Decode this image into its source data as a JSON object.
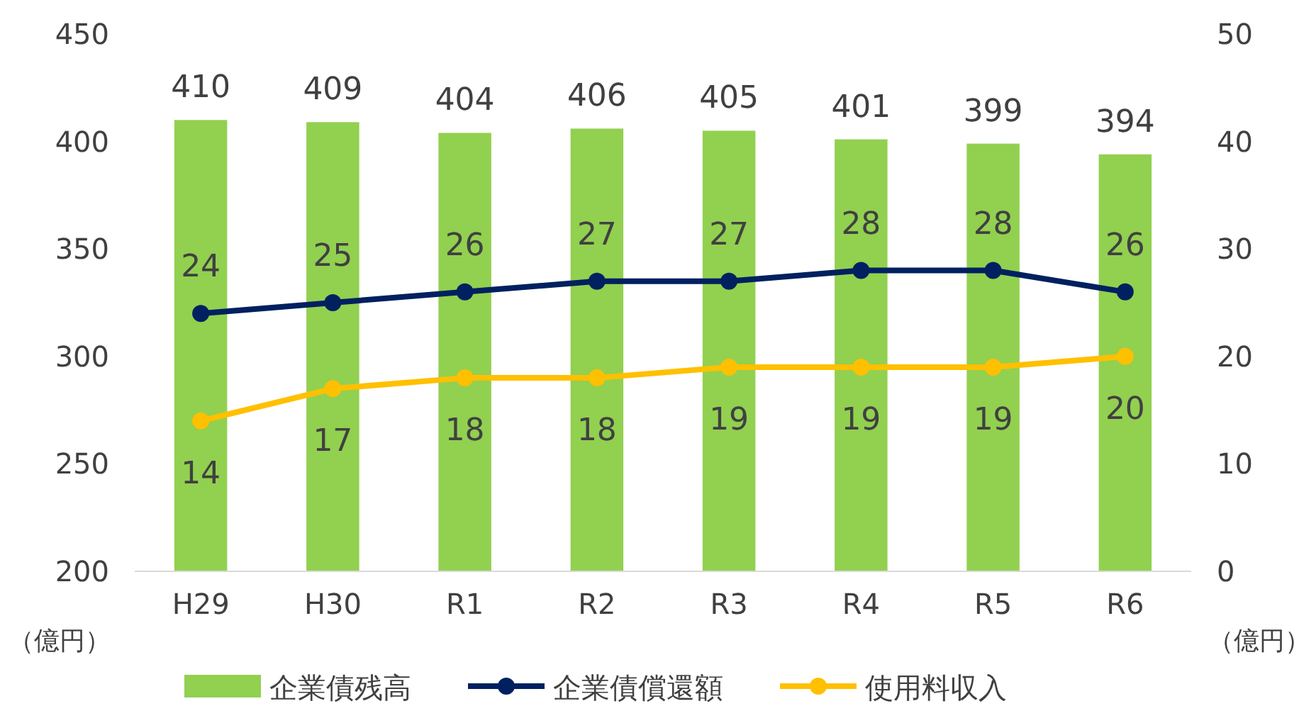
{
  "chart_data": {
    "type": "bar",
    "categories": [
      "H29",
      "H30",
      "R1",
      "R2",
      "R3",
      "R4",
      "R5",
      "R6"
    ],
    "series": [
      {
        "name": "企業債残高",
        "color": "#92d050",
        "values": [
          410,
          409,
          404,
          406,
          405,
          401,
          399,
          394
        ]
      },
      {
        "name": "企業債償還額",
        "type": "line",
        "axis": "y2",
        "color": "#002060",
        "values": [
          24,
          25,
          26,
          27,
          27,
          28,
          28,
          26
        ]
      },
      {
        "name": "使用料収入",
        "type": "line",
        "axis": "y2",
        "color": "#ffc000",
        "values": [
          14,
          17,
          18,
          18,
          19,
          19,
          19,
          20
        ]
      }
    ],
    "ylim": [
      200,
      450
    ],
    "yticks": [
      200,
      250,
      300,
      350,
      400,
      450
    ],
    "y2lim": [
      0,
      50
    ],
    "y2ticks": [
      0,
      10,
      20,
      30,
      40,
      50
    ],
    "ylabel": "（億円）",
    "y2label": "（億円）",
    "data_labels": true,
    "grid": false,
    "legend": "bottom",
    "marker": "circle"
  }
}
